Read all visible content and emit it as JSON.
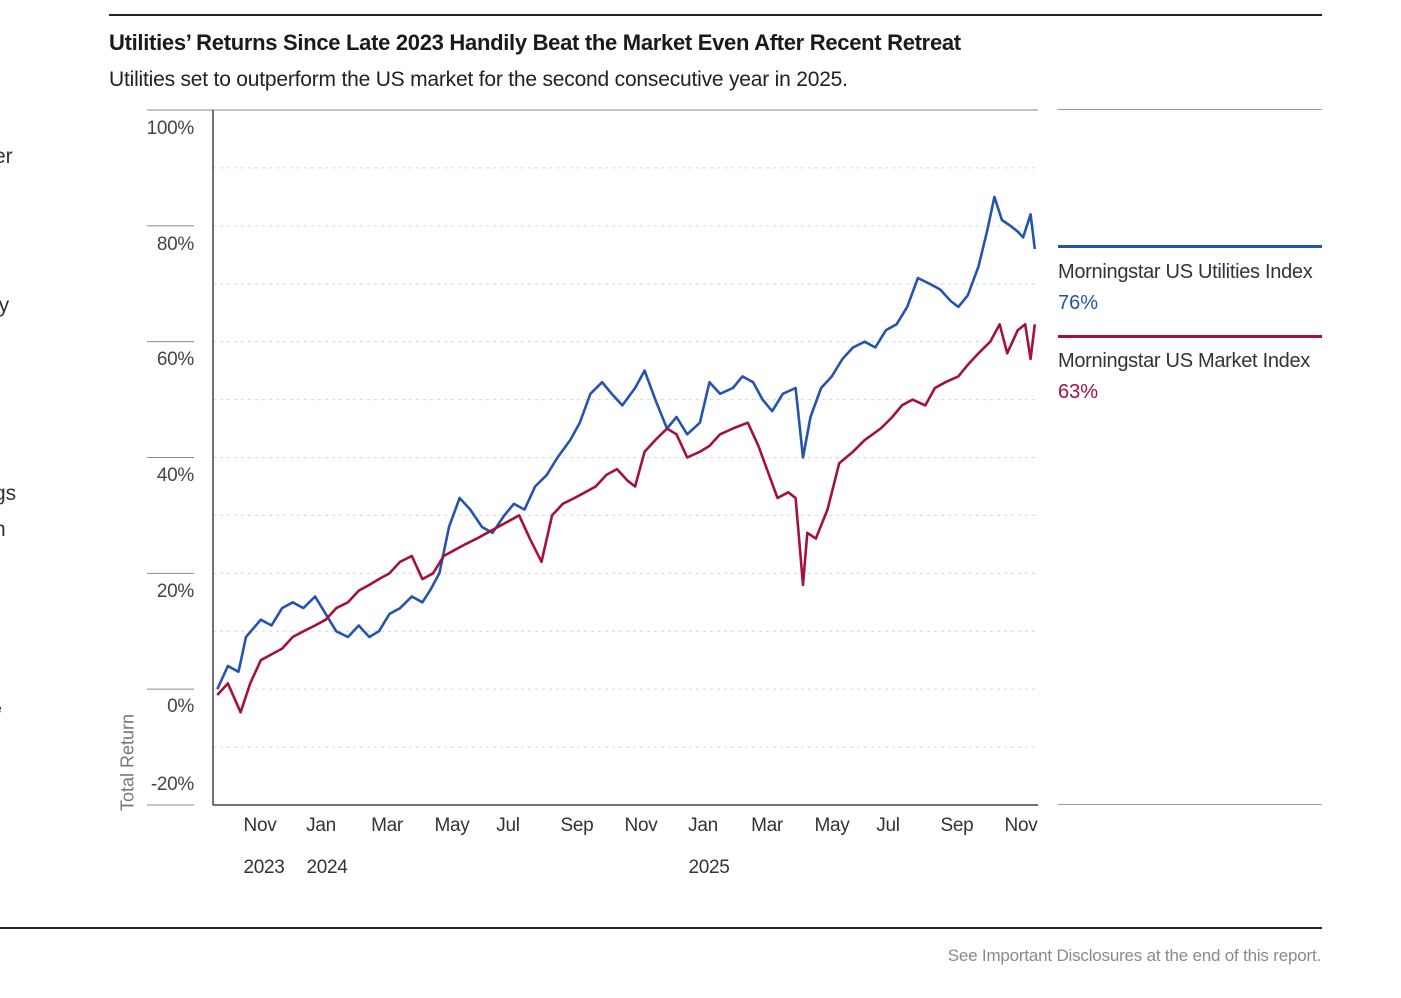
{
  "page": {
    "title": "Utilities’ Returns Since Late 2023 Handily Beat the Market Even After Recent Retreat",
    "subtitle": "Utilities set to outperform the US market for the second consecutive year in 2025.",
    "footer": "See Important Disclosures at the end of this report.",
    "left_fragments": [
      "er",
      "ly",
      "gs",
      "n",
      "e"
    ]
  },
  "colors": {
    "utilities": "#2454b0",
    "market": "#a3113f",
    "grid": "#d6d6d6",
    "axis": "#555555"
  },
  "chart_data": {
    "type": "line",
    "ylabel": "Total Return",
    "ylim": [
      -20,
      100
    ],
    "y_ticks": [
      "100%",
      "80%",
      "60%",
      "40%",
      "20%",
      "0%",
      "-20%"
    ],
    "y_tick_values": [
      100,
      80,
      60,
      40,
      20,
      0,
      -20
    ],
    "x_ticks": [
      {
        "label": "Nov",
        "year": "2023",
        "date": "2023-11-01"
      },
      {
        "label": "Jan",
        "year": "2024",
        "date": "2024-01-01"
      },
      {
        "label": "Mar",
        "year": "",
        "date": "2024-03-01"
      },
      {
        "label": "May",
        "year": "",
        "date": "2024-05-01"
      },
      {
        "label": "Jul",
        "year": "",
        "date": "2024-07-01"
      },
      {
        "label": "Sep",
        "year": "",
        "date": "2024-09-01"
      },
      {
        "label": "Nov",
        "year": "",
        "date": "2024-11-01"
      },
      {
        "label": "Jan",
        "year": "2025",
        "date": "2025-01-01"
      },
      {
        "label": "Mar",
        "year": "",
        "date": "2025-03-01"
      },
      {
        "label": "May",
        "year": "",
        "date": "2025-05-01"
      },
      {
        "label": "Jul",
        "year": "",
        "date": "2025-07-01"
      },
      {
        "label": "Sep",
        "year": "",
        "date": "2025-09-01"
      },
      {
        "label": "Nov",
        "year": "",
        "date": "2025-11-01"
      }
    ],
    "series": [
      {
        "name": "Morningstar US Utilities Index",
        "end_label": "76%",
        "points": [
          [
            "2023-10-05",
            0
          ],
          [
            "2023-10-15",
            4
          ],
          [
            "2023-10-25",
            3
          ],
          [
            "2023-11-01",
            9
          ],
          [
            "2023-11-15",
            12
          ],
          [
            "2023-11-25",
            11
          ],
          [
            "2023-12-05",
            14
          ],
          [
            "2023-12-15",
            15
          ],
          [
            "2023-12-25",
            14
          ],
          [
            "2024-01-05",
            16
          ],
          [
            "2024-01-15",
            13
          ],
          [
            "2024-01-25",
            10
          ],
          [
            "2024-02-05",
            9
          ],
          [
            "2024-02-15",
            11
          ],
          [
            "2024-02-25",
            9
          ],
          [
            "2024-03-05",
            10
          ],
          [
            "2024-03-15",
            13
          ],
          [
            "2024-03-25",
            14
          ],
          [
            "2024-04-05",
            16
          ],
          [
            "2024-04-15",
            15
          ],
          [
            "2024-04-22",
            17
          ],
          [
            "2024-05-01",
            20
          ],
          [
            "2024-05-10",
            28
          ],
          [
            "2024-05-20",
            33
          ],
          [
            "2024-05-30",
            31
          ],
          [
            "2024-06-10",
            28
          ],
          [
            "2024-06-20",
            27
          ],
          [
            "2024-07-01",
            30
          ],
          [
            "2024-07-10",
            32
          ],
          [
            "2024-07-20",
            31
          ],
          [
            "2024-07-30",
            35
          ],
          [
            "2024-08-10",
            37
          ],
          [
            "2024-08-20",
            40
          ],
          [
            "2024-09-01",
            43
          ],
          [
            "2024-09-10",
            46
          ],
          [
            "2024-09-20",
            51
          ],
          [
            "2024-10-01",
            53
          ],
          [
            "2024-10-10",
            51
          ],
          [
            "2024-10-20",
            49
          ],
          [
            "2024-11-01",
            52
          ],
          [
            "2024-11-10",
            55
          ],
          [
            "2024-11-20",
            50
          ],
          [
            "2024-12-01",
            45
          ],
          [
            "2024-12-10",
            47
          ],
          [
            "2024-12-20",
            44
          ],
          [
            "2025-01-01",
            46
          ],
          [
            "2025-01-10",
            53
          ],
          [
            "2025-01-20",
            51
          ],
          [
            "2025-02-01",
            52
          ],
          [
            "2025-02-10",
            54
          ],
          [
            "2025-02-20",
            53
          ],
          [
            "2025-03-01",
            50
          ],
          [
            "2025-03-10",
            48
          ],
          [
            "2025-03-20",
            51
          ],
          [
            "2025-04-01",
            52
          ],
          [
            "2025-04-08",
            40
          ],
          [
            "2025-04-15",
            47
          ],
          [
            "2025-04-25",
            52
          ],
          [
            "2025-05-05",
            54
          ],
          [
            "2025-05-15",
            57
          ],
          [
            "2025-05-25",
            59
          ],
          [
            "2025-06-05",
            60
          ],
          [
            "2025-06-15",
            59
          ],
          [
            "2025-06-25",
            62
          ],
          [
            "2025-07-05",
            63
          ],
          [
            "2025-07-15",
            66
          ],
          [
            "2025-07-25",
            71
          ],
          [
            "2025-08-05",
            70
          ],
          [
            "2025-08-15",
            69
          ],
          [
            "2025-08-25",
            67
          ],
          [
            "2025-09-01",
            66
          ],
          [
            "2025-09-10",
            68
          ],
          [
            "2025-09-20",
            73
          ],
          [
            "2025-09-28",
            79
          ],
          [
            "2025-10-05",
            85
          ],
          [
            "2025-10-12",
            81
          ],
          [
            "2025-10-20",
            80
          ],
          [
            "2025-10-27",
            79
          ],
          [
            "2025-11-01",
            78
          ],
          [
            "2025-11-08",
            82
          ],
          [
            "2025-11-12",
            76
          ]
        ]
      },
      {
        "name": "Morningstar US Market Index",
        "end_label": "63%",
        "points": [
          [
            "2023-10-05",
            -1
          ],
          [
            "2023-10-15",
            1
          ],
          [
            "2023-10-27",
            -4
          ],
          [
            "2023-11-05",
            1
          ],
          [
            "2023-11-15",
            5
          ],
          [
            "2023-11-25",
            6
          ],
          [
            "2023-12-05",
            7
          ],
          [
            "2023-12-15",
            9
          ],
          [
            "2023-12-25",
            10
          ],
          [
            "2024-01-05",
            11
          ],
          [
            "2024-01-15",
            12
          ],
          [
            "2024-01-25",
            14
          ],
          [
            "2024-02-05",
            15
          ],
          [
            "2024-02-15",
            17
          ],
          [
            "2024-02-25",
            18
          ],
          [
            "2024-03-05",
            19
          ],
          [
            "2024-03-15",
            20
          ],
          [
            "2024-03-25",
            22
          ],
          [
            "2024-04-05",
            23
          ],
          [
            "2024-04-15",
            19
          ],
          [
            "2024-04-25",
            20
          ],
          [
            "2024-05-05",
            23
          ],
          [
            "2024-05-15",
            24
          ],
          [
            "2024-05-25",
            25
          ],
          [
            "2024-06-05",
            26
          ],
          [
            "2024-06-15",
            27
          ],
          [
            "2024-06-25",
            28
          ],
          [
            "2024-07-05",
            29
          ],
          [
            "2024-07-15",
            30
          ],
          [
            "2024-07-25",
            26
          ],
          [
            "2024-08-05",
            22
          ],
          [
            "2024-08-15",
            30
          ],
          [
            "2024-08-25",
            32
          ],
          [
            "2024-09-05",
            33
          ],
          [
            "2024-09-15",
            34
          ],
          [
            "2024-09-25",
            35
          ],
          [
            "2024-10-05",
            37
          ],
          [
            "2024-10-15",
            38
          ],
          [
            "2024-10-25",
            36
          ],
          [
            "2024-11-01",
            35
          ],
          [
            "2024-11-10",
            41
          ],
          [
            "2024-11-20",
            43
          ],
          [
            "2024-12-01",
            45
          ],
          [
            "2024-12-10",
            44
          ],
          [
            "2024-12-20",
            40
          ],
          [
            "2025-01-01",
            41
          ],
          [
            "2025-01-10",
            42
          ],
          [
            "2025-01-20",
            44
          ],
          [
            "2025-02-01",
            45
          ],
          [
            "2025-02-15",
            46
          ],
          [
            "2025-02-25",
            42
          ],
          [
            "2025-03-05",
            38
          ],
          [
            "2025-03-15",
            33
          ],
          [
            "2025-03-25",
            34
          ],
          [
            "2025-04-01",
            33
          ],
          [
            "2025-04-08",
            18
          ],
          [
            "2025-04-12",
            27
          ],
          [
            "2025-04-20",
            26
          ],
          [
            "2025-05-01",
            31
          ],
          [
            "2025-05-12",
            39
          ],
          [
            "2025-05-25",
            41
          ],
          [
            "2025-06-05",
            43
          ],
          [
            "2025-06-20",
            45
          ],
          [
            "2025-07-01",
            47
          ],
          [
            "2025-07-10",
            49
          ],
          [
            "2025-07-20",
            50
          ],
          [
            "2025-08-01",
            49
          ],
          [
            "2025-08-10",
            52
          ],
          [
            "2025-08-20",
            53
          ],
          [
            "2025-09-01",
            54
          ],
          [
            "2025-09-10",
            56
          ],
          [
            "2025-09-20",
            58
          ],
          [
            "2025-10-01",
            60
          ],
          [
            "2025-10-10",
            63
          ],
          [
            "2025-10-17",
            58
          ],
          [
            "2025-10-27",
            62
          ],
          [
            "2025-11-03",
            63
          ],
          [
            "2025-11-08",
            57
          ],
          [
            "2025-11-12",
            63
          ]
        ]
      }
    ]
  }
}
